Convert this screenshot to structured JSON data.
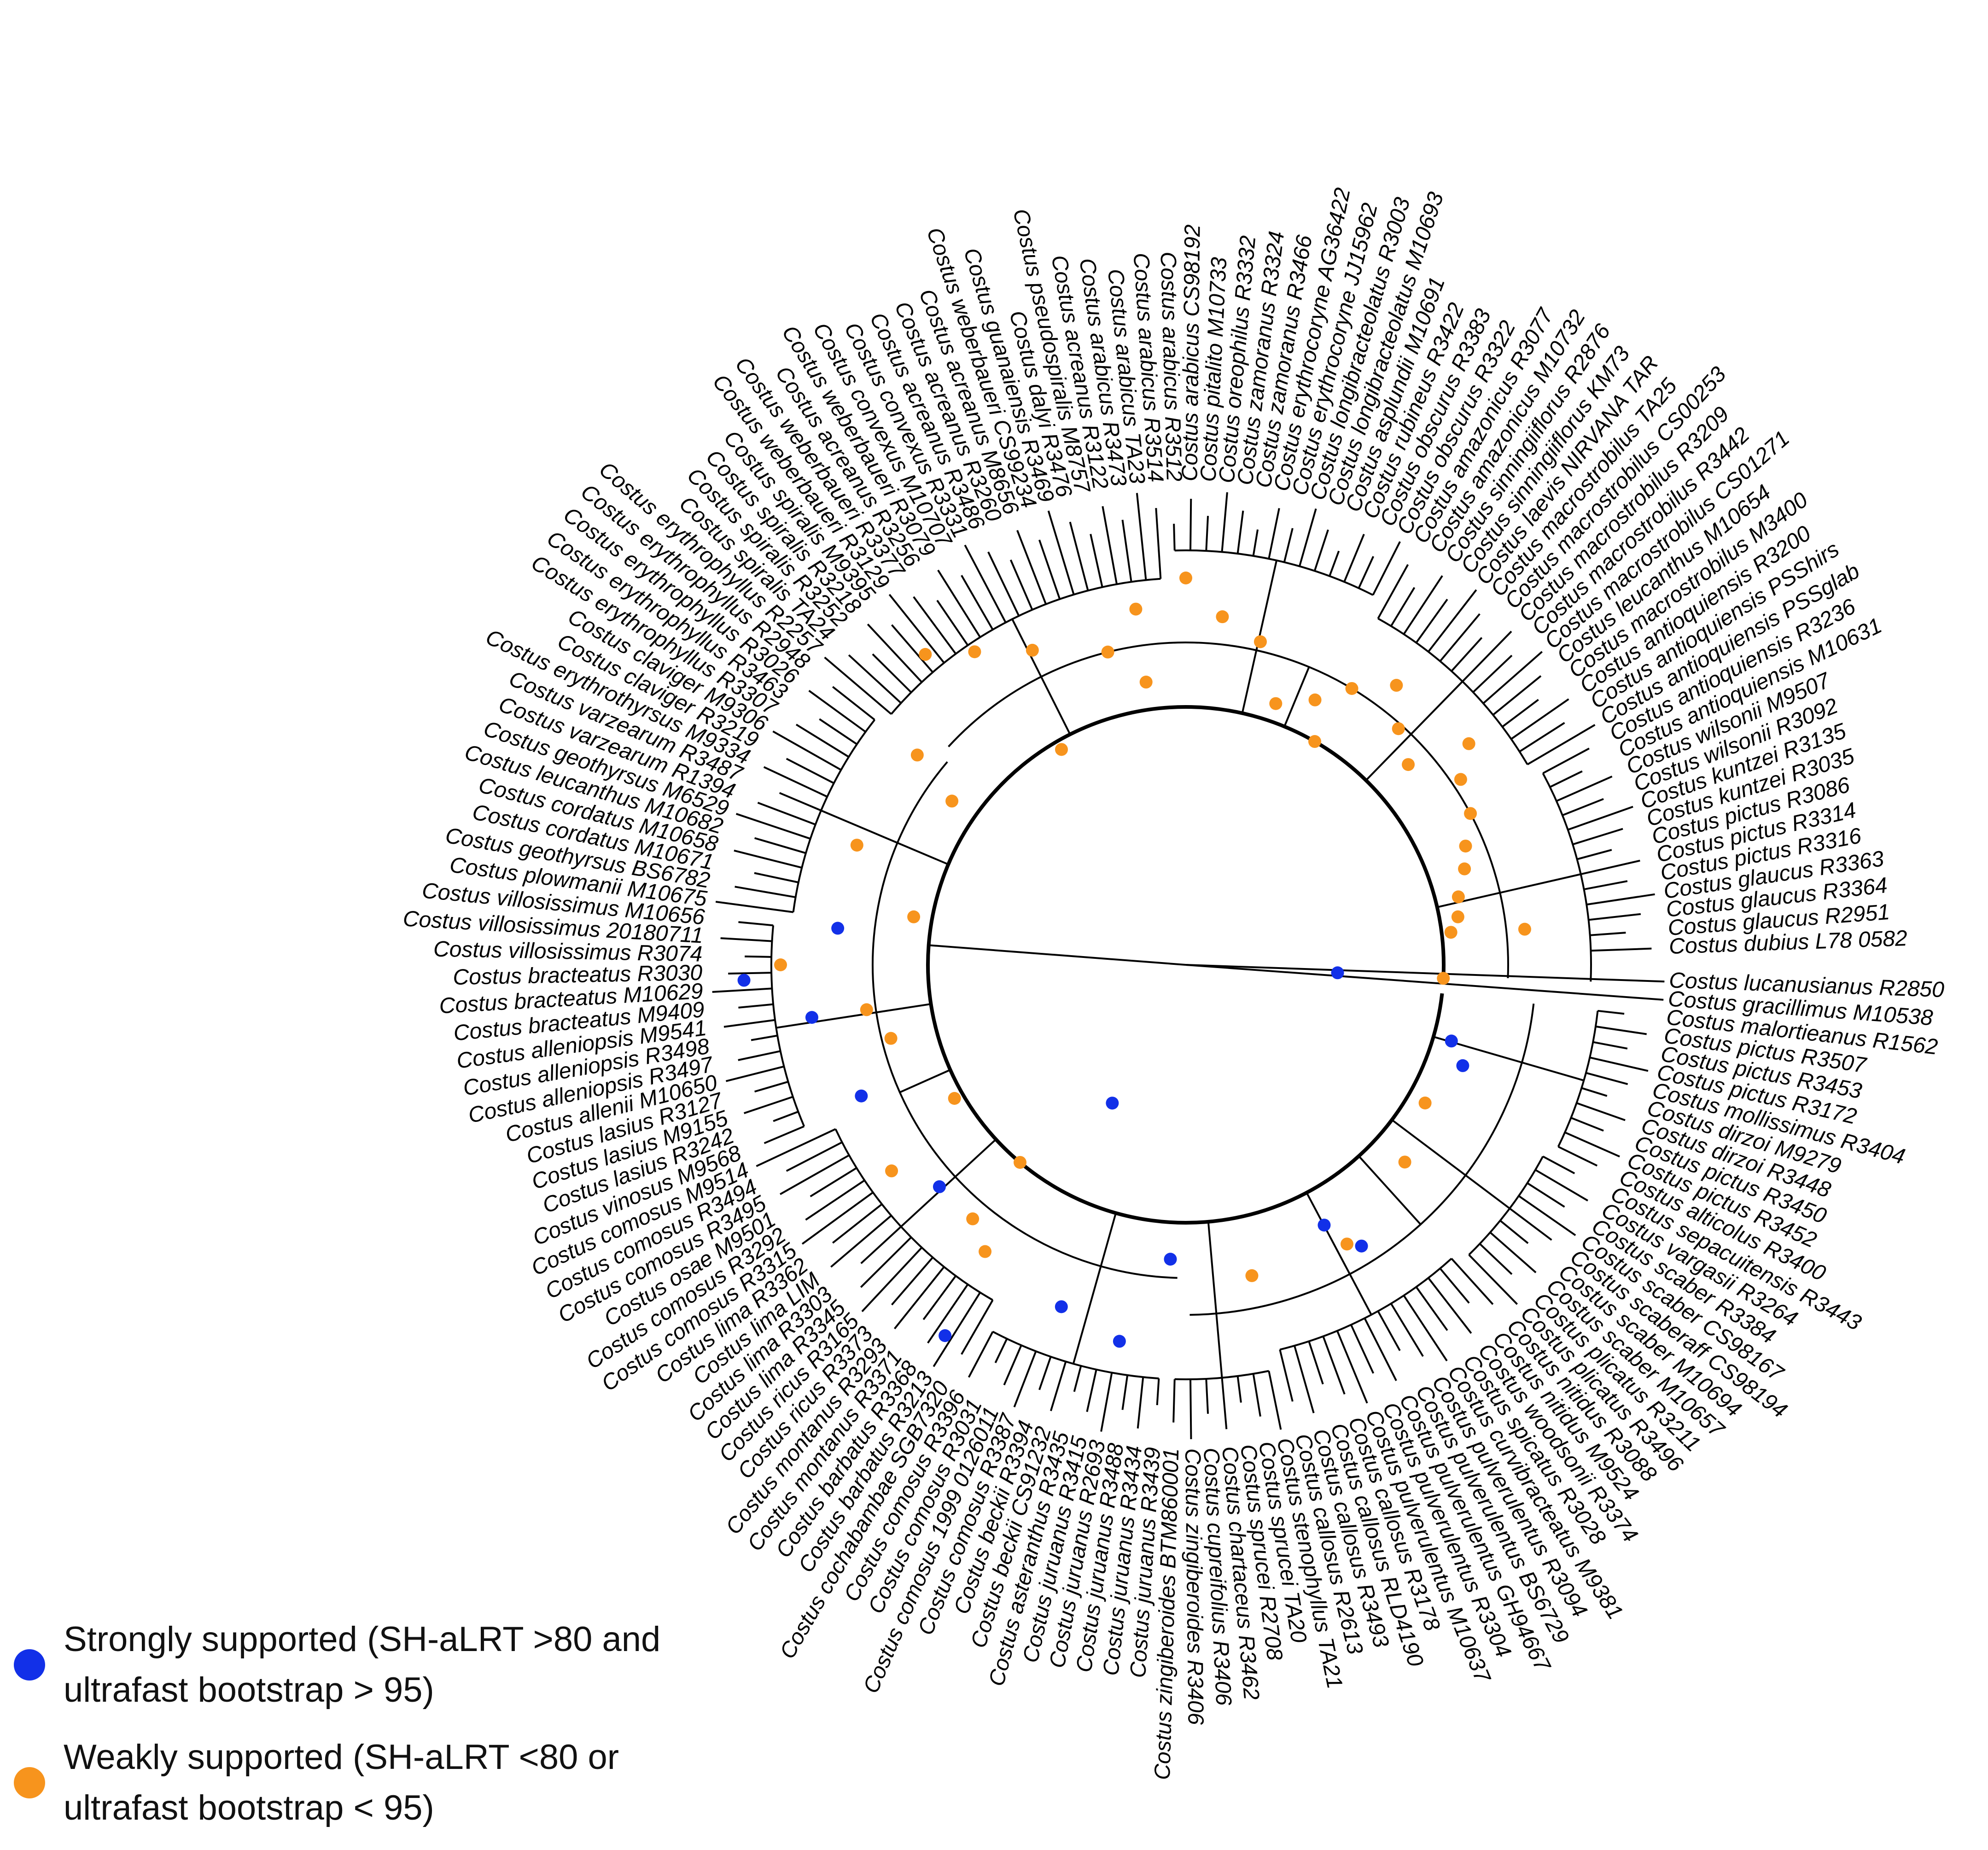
{
  "colors": {
    "strong": "#1230e8",
    "weak": "#f7941d",
    "line": "#000000"
  },
  "legend": {
    "strong": {
      "label": "Strongly supported (SH-aLRT >80 and ultrafast bootstrap > 95)",
      "line1": "Strongly supported (SH-aLRT >80 and",
      "line2": "ultrafast bootstrap > 95)"
    },
    "weak": {
      "label": "Weakly supported (SH-aLRT <80 or ultrafast bootstrap < 95)",
      "line1": "Weakly supported (SH-aLRT <80 or",
      "line2": "ultrafast bootstrap < 95)"
    }
  },
  "tree": {
    "layout": "circular",
    "tips": [
      "Costus lucanusianus R2850",
      "Costus gracillimus M10538",
      "Costus malortieanus R1562",
      "Costus pictus R3507",
      "Costus pictus R3453",
      "Costus pictus R3172",
      "Costus mollissimus R3404",
      "Costus dirzoi M9279",
      "Costus dirzoi R3448",
      "Costus pictus R3450",
      "Costus pictus R3452",
      "Costus alticolus R3400",
      "Costus sepacuitensis R3443",
      "Costus vargasii R3264",
      "Costus scaber R3384",
      "Costus scaber CS98167",
      "Costus scaberaff CS98194",
      "Costus scaber M10694",
      "Costus scaber M10657",
      "Costus plicatus R3211",
      "Costus plicatus R3496",
      "Costus nitidus R3088",
      "Costus nitidus M9524",
      "Costus woodsonii R3374",
      "Costus spicatus R3028",
      "Costus curvibracteatus M9381",
      "Costus pulverulentus R3094",
      "Costus pulverulentus BS6729",
      "Costus pulverulentus GH94667",
      "Costus pulverulentus R3304",
      "Costus pulverulentus M10637",
      "Costus callosus R3178",
      "Costus callosus RLD4190",
      "Costus callosus R3493",
      "Costus callosus R2613",
      "Costus stenophyllus TA21",
      "Costus sprucei TA20",
      "Costus sprucei R2708",
      "Costus chartaceus R3462",
      "Costus cupreifolius R3406",
      "Costus zingiberoides R3406",
      "Costus zingiberoides BTM860001",
      "Costus juruanus R3439",
      "Costus juruanus R3434",
      "Costus juruanus R3488",
      "Costus juruanus R2693",
      "Costus juruanus R3415",
      "Costus asteranthus R3435",
      "Costus beckii CS91232",
      "Costus beckii R3394",
      "Costus comosus R3387",
      "Costus comosus 1999 0126011",
      "Costus comosus R3031",
      "Costus comosus R3396",
      "Costus cochabambae SGB7320",
      "Costus barbatus R3213",
      "Costus barbatus R3368",
      "Costus montanus R3371",
      "Costus montanus R3293",
      "Costus ricus R3373",
      "Costus ricus R3165",
      "Costus lima R3345",
      "Costus lima R3303",
      "Costus lima LIM",
      "Costus lima R3362",
      "Costus comosus R3315",
      "Costus comosus R3292",
      "Costus osae M9501",
      "Costus comosus R3495",
      "Costus comosus R3494",
      "Costus comosus M9514",
      "Costus vinosus M9568",
      "Costus lasius R3242",
      "Costus lasius M9155",
      "Costus lasius R3127",
      "Costus allenii M10650",
      "Costus alleniopsis R3497",
      "Costus alleniopsis R3498",
      "Costus alleniopsis M9541",
      "Costus bracteatus M9409",
      "Costus bracteatus M10629",
      "Costus bracteatus R3030",
      "Costus villosissimus R3074",
      "Costus villosissimus 20180711",
      "Costus villosissimus M10656",
      "Costus plowmanii M10675",
      "Costus geothyrsus BS6782",
      "Costus cordatus M10671",
      "Costus cordatus M10658",
      "Costus leucanthus M10682",
      "Costus geothyrsus M6529",
      "Costus varzearum R1394",
      "Costus varzearum R3487",
      "Costus erythrothyrsus M9334",
      "Costus claviger R3219",
      "Costus claviger M9306",
      "Costus erythrophyllus R3307",
      "Costus erythrophyllus R3463",
      "Costus erythrophyllus R3026",
      "Costus erythrophyllus R2948",
      "Costus erythrophyllus R2257",
      "Costus spiralis TA24",
      "Costus spiralis R3252",
      "Costus spiralis R3218",
      "Costus spiralis M9395",
      "Costus weberbaueri R3129",
      "Costus weberbaueri R3377",
      "Costus acreanus R3256",
      "Costus weberbaueri R3079",
      "Costus convexus M10707",
      "Costus convexus R3331",
      "Costus acreanus R3486",
      "Costus acreanus R3260",
      "Costus acreanus M8656",
      "Costus weberbaueri CS99234",
      "Costus guanaiensis R3469",
      "Costus dalyi R3476",
      "Costus pseudospiralis M8757",
      "Costus acreanus R3122",
      "Costus arabicus R3473",
      "Costus arabicus TA23",
      "Costus arabicus R3514",
      "Costus arabicus R3512",
      "Costus arabicus CS98192",
      "Costus pitalito M10733",
      "Costus oreophilus R3332",
      "Costus zamoranus R3324",
      "Costus zamoranus R3466",
      "Costus erythrocoryne AG36422",
      "Costus erythrocoryne JJ15962",
      "Costus longibracteolatus R3003",
      "Costus longibracteolatus M10693",
      "Costus asplundii M10691",
      "Costus rubineus R3422",
      "Costus obscurus R3383",
      "Costus obscurus R3322",
      "Costus amazonicus R3077",
      "Costus amazonicus M10732",
      "Costus sinningiiflorus R2876",
      "Costus sinningiiflorus KM73",
      "Costus laevis NIRVANA TAR",
      "Costus macrostrobilus TA25",
      "Costus macrostrobilus CS00253",
      "Costus macrostrobilus R3209",
      "Costus macrostrobilus R3442",
      "Costus macrostrobilus CS01271",
      "Costus leucanthus M10654",
      "Costus macrostrobilus M3400",
      "Costus antioquiensis R3200",
      "Costus antioquiensis PSShirs",
      "Costus antioquiensis PSSglab",
      "Costus antioquiensis R3236",
      "Costus antioquiensis M10631",
      "Costus wilsonii M9507",
      "Costus wilsonii R3092",
      "Costus kuntzei R3135",
      "Costus kuntzei R3035",
      "Costus pictus R3086",
      "Costus pictus R3314",
      "Costus pictus R3316",
      "Costus glaucus R3363",
      "Costus glaucus R3364",
      "Costus glaucus R2951",
      "Costus dubius L78 0582"
    ],
    "support": {
      "strong": 15,
      "weak": 43
    }
  }
}
